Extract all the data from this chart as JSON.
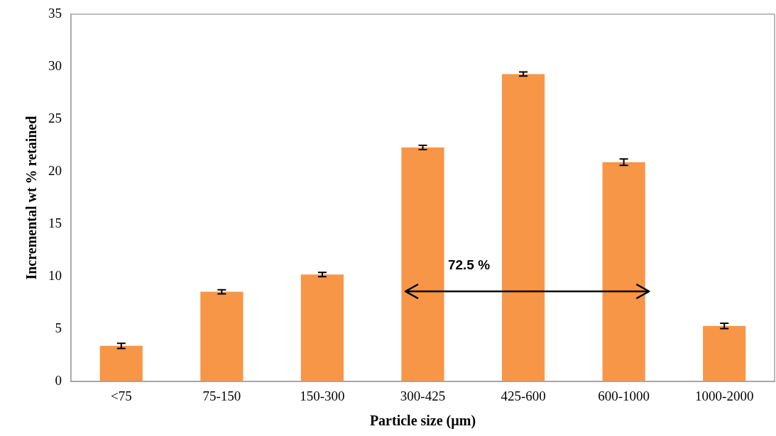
{
  "chart_data": {
    "type": "bar",
    "xlabel": "Particle size (µm)",
    "ylabel": "Incremental wt % retained",
    "categories": [
      "<75",
      "75-150",
      "150-300",
      "300-425",
      "425-600",
      "600-1000",
      "1000-2000"
    ],
    "values": [
      3.4,
      8.55,
      10.2,
      22.3,
      29.3,
      20.9,
      5.3
    ],
    "errors": [
      0.25,
      0.2,
      0.2,
      0.2,
      0.2,
      0.3,
      0.25
    ],
    "color": "#f79646",
    "ylim": [
      0,
      35
    ],
    "yticks": [
      0,
      5,
      10,
      15,
      20,
      25,
      30,
      35
    ],
    "grid": false,
    "legend": false,
    "annotations": [
      "72.5 %"
    ]
  }
}
